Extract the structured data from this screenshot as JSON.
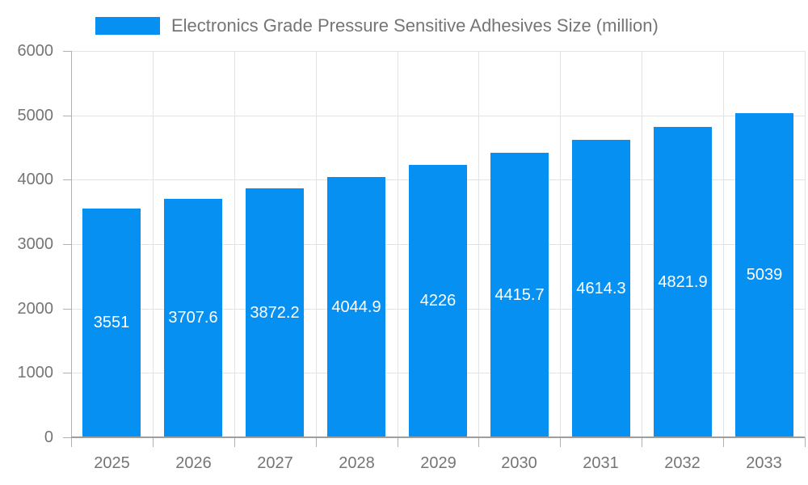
{
  "chart_data": {
    "type": "bar",
    "title": "Electronics Grade Pressure Sensitive Adhesives Size (million)",
    "categories": [
      "2025",
      "2026",
      "2027",
      "2028",
      "2029",
      "2030",
      "2031",
      "2032",
      "2033"
    ],
    "values": [
      3551,
      3707.6,
      3872.2,
      4044.9,
      4226,
      4415.7,
      4614.3,
      4821.9,
      5039
    ],
    "value_labels": [
      "3551",
      "3707.6",
      "3872.2",
      "4044.9",
      "4226",
      "4415.7",
      "4614.3",
      "4821.9",
      "5039"
    ],
    "xlabel": "",
    "ylabel": "",
    "ylim": [
      0,
      6000
    ],
    "y_ticks": [
      0,
      1000,
      2000,
      3000,
      4000,
      5000,
      6000
    ],
    "grid": true,
    "legend_position": "top",
    "colors": {
      "bar": "#0690f2",
      "grid": "#e3e3e3",
      "axis": "#b0b0b0",
      "axis_baseline": "#9e9e9e",
      "label_text": "#757575",
      "value_text": "#ffffff",
      "background": "#ffffff"
    }
  }
}
